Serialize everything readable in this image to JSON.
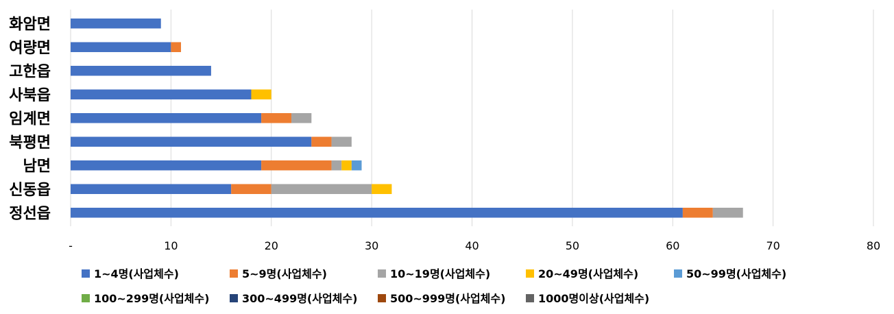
{
  "chart_data": {
    "type": "bar",
    "orientation": "horizontal",
    "stacked": true,
    "categories": [
      "화암면",
      "여량면",
      "고한읍",
      "사북읍",
      "임계면",
      "북평면",
      "남면",
      "신동읍",
      "정선읍"
    ],
    "series": [
      {
        "name": "1~4명(사업체수)",
        "color": "#4472C4",
        "values": [
          9,
          10,
          14,
          18,
          19,
          24,
          19,
          16,
          61
        ]
      },
      {
        "name": "5~9명(사업체수)",
        "color": "#ED7D31",
        "values": [
          0,
          1,
          0,
          0,
          3,
          2,
          7,
          4,
          3
        ]
      },
      {
        "name": "10~19명(사업체수)",
        "color": "#A5A5A5",
        "values": [
          0,
          0,
          0,
          0,
          2,
          2,
          1,
          10,
          3
        ]
      },
      {
        "name": "20~49명(사업체수)",
        "color": "#FFC000",
        "values": [
          0,
          0,
          0,
          2,
          0,
          0,
          1,
          2,
          0
        ]
      },
      {
        "name": "50~99명(사업체수)",
        "color": "#5B9BD5",
        "values": [
          0,
          0,
          0,
          0,
          0,
          0,
          1,
          0,
          0
        ]
      },
      {
        "name": "100~299명(사업체수)",
        "color": "#70AD47",
        "values": [
          0,
          0,
          0,
          0,
          0,
          0,
          0,
          0,
          0
        ]
      },
      {
        "name": "300~499명(사업체수)",
        "color": "#264478",
        "values": [
          0,
          0,
          0,
          0,
          0,
          0,
          0,
          0,
          0
        ]
      },
      {
        "name": "500~999명(사업체수)",
        "color": "#9E480E",
        "values": [
          0,
          0,
          0,
          0,
          0,
          0,
          0,
          0,
          0
        ]
      },
      {
        "name": "1000명이상(사업체수)",
        "color": "#636363",
        "values": [
          0,
          0,
          0,
          0,
          0,
          0,
          0,
          0,
          0
        ]
      }
    ],
    "xlim": [
      0,
      80
    ],
    "x_ticks": [
      "-",
      "10",
      "20",
      "30",
      "40",
      "50",
      "60",
      "70",
      "80"
    ],
    "grid": "vertical",
    "legend_position": "bottom"
  }
}
